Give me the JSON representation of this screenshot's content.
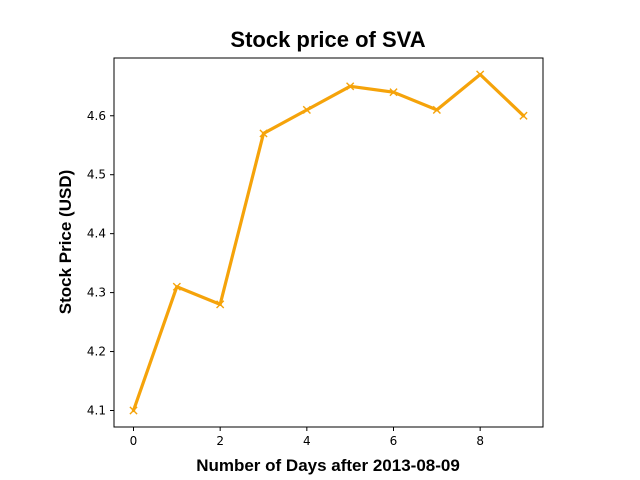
{
  "chart_data": {
    "type": "line",
    "title": "Stock price of SVA",
    "xlabel": "Number of Days after 2013-08-09",
    "ylabel": "Stock Price (USD)",
    "x": [
      0,
      1,
      2,
      3,
      4,
      5,
      6,
      7,
      8,
      9
    ],
    "series": [
      {
        "values": [
          4.1,
          4.31,
          4.28,
          4.57,
          4.61,
          4.65,
          4.64,
          4.61,
          4.67,
          4.6
        ],
        "color": "#f5a30a",
        "marker": "x"
      }
    ],
    "xlim": [
      -0.45,
      9.45
    ],
    "ylim": [
      4.072,
      4.698
    ],
    "xticks": [
      0,
      2,
      4,
      6,
      8
    ],
    "xtick_labels": [
      "0",
      "2",
      "4",
      "6",
      "8"
    ],
    "yticks": [
      4.1,
      4.2,
      4.3,
      4.4,
      4.5,
      4.6
    ],
    "ytick_labels": [
      "4.1",
      "4.2",
      "4.3",
      "4.4",
      "4.5",
      "4.6"
    ],
    "grid": false,
    "legend": "none"
  }
}
